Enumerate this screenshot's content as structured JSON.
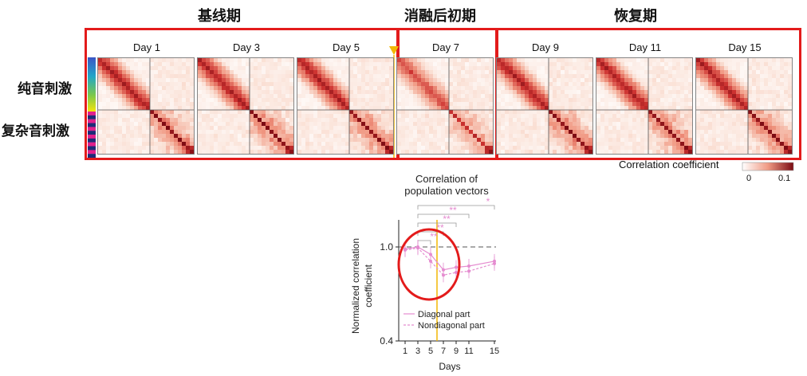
{
  "phases": [
    {
      "label": "基线期"
    },
    {
      "label": "消融后初期"
    },
    {
      "label": "恢复期"
    }
  ],
  "row_labels": [
    "纯音刺激",
    "复杂音刺激"
  ],
  "days": [
    "Day 1",
    "Day 3",
    "Day 5",
    "Day 7",
    "Day 9",
    "Day 11",
    "Day 15"
  ],
  "colorbar": {
    "label": "Correlation coefficient",
    "tick_min": "0",
    "tick_max": "0.1",
    "color_low": "#ffffff",
    "color_high": "#7a0a12"
  },
  "colors": {
    "highlight_red": "#e31b1b",
    "ablation_marker": "#f2b705",
    "series_color": "#e58cd0"
  },
  "chart_data": {
    "type": "line",
    "title": "Correlation of population vectors",
    "xlabel": "Days",
    "ylabel": "Normalized correlation coefficient",
    "x": [
      1,
      3,
      5,
      7,
      9,
      11,
      15
    ],
    "xticks": [
      "1",
      "3",
      "5",
      "7",
      "9",
      "11",
      "15"
    ],
    "yticks": [
      "0.4",
      "1.0"
    ],
    "ylim": [
      0.4,
      1.15
    ],
    "log_scale_y": true,
    "reference_line": 1.0,
    "series": [
      {
        "name": "Diagonal part",
        "values": [
          0.98,
          1.0,
          0.93,
          0.8,
          0.82,
          0.83,
          0.87
        ]
      },
      {
        "name": "Nondiagonal part",
        "values": [
          0.97,
          0.99,
          0.87,
          0.76,
          0.78,
          0.79,
          0.85
        ]
      }
    ],
    "significance": [
      {
        "from": 3,
        "to": 15,
        "stars": "*"
      },
      {
        "from": 3,
        "to": 11,
        "stars": "**"
      },
      {
        "from": 3,
        "to": 9,
        "stars": "**"
      },
      {
        "from": 3,
        "to": 7,
        "stars": "**"
      },
      {
        "from": 3,
        "to": 5,
        "stars": "**"
      }
    ],
    "legend_position": "bottom-left"
  }
}
